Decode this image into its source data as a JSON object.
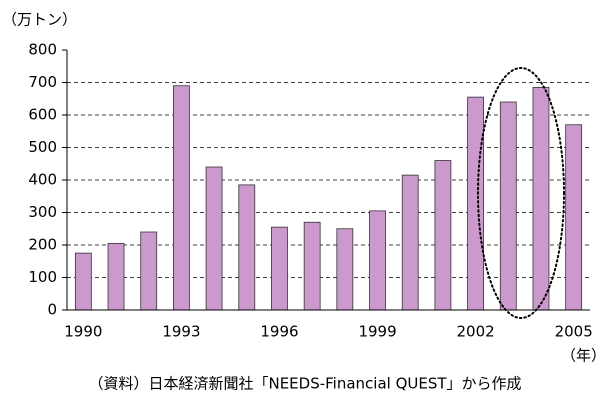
{
  "chart_data": {
    "type": "bar",
    "y_axis_label": "（万トン）",
    "x_axis_label": "（年）",
    "source": "（資料）日本経済新聞社「NEEDS-Financial QUEST」から作成",
    "categories": [
      "1990",
      null,
      null,
      "1993",
      null,
      null,
      "1996",
      null,
      null,
      "1999",
      null,
      null,
      "2002",
      null,
      null,
      "2005"
    ],
    "values": [
      175,
      205,
      240,
      690,
      440,
      385,
      255,
      270,
      250,
      305,
      415,
      460,
      655,
      640,
      685,
      570
    ],
    "color": "#cc99cc",
    "ylim": [
      0,
      800
    ],
    "yticks": [
      0,
      100,
      200,
      300,
      400,
      500,
      600,
      700,
      800
    ],
    "grid": true
  }
}
